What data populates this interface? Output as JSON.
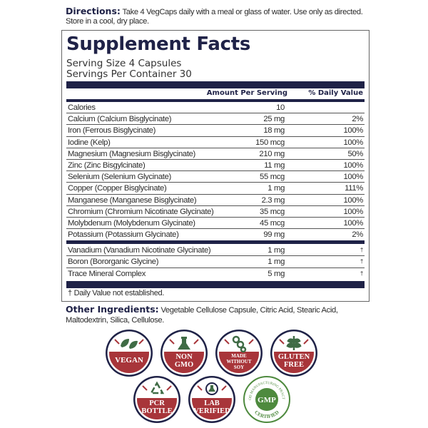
{
  "directions": {
    "label": "Directions:",
    "text": "Take 4 VegCaps daily with a meal or glass of water. Use only as directed. Store in a cool, dry place."
  },
  "facts": {
    "title": "Supplement Facts",
    "serving_size": "Serving Size 4 Capsules",
    "servings_per_container": "Servings Per Container 30",
    "col_amount": "Amount Per Serving",
    "col_dv": "% Daily Value",
    "rows": [
      {
        "name": "Calories",
        "amount": "10",
        "dv": ""
      },
      {
        "name": "Calcium (Calcium Bisglycinate)",
        "amount": "25 mg",
        "dv": "2%"
      },
      {
        "name": "Iron (Ferrous Bisglycinate)",
        "amount": "18 mg",
        "dv": "100%"
      },
      {
        "name": "Iodine (Kelp)",
        "amount": "150 mcg",
        "dv": "100%"
      },
      {
        "name": "Magnesium (Magnesium Bisglycinate)",
        "amount": "210 mg",
        "dv": "50%"
      },
      {
        "name": "Zinc (Zinc Bisgylcinate)",
        "amount": "11 mg",
        "dv": "100%"
      },
      {
        "name": "Selenium (Selenium Glycinate)",
        "amount": "55 mcg",
        "dv": "100%"
      },
      {
        "name": "Copper (Copper Bisglycinate)",
        "amount": "1 mg",
        "dv": "111%"
      },
      {
        "name": "Manganese (Manganese Bisglycinate)",
        "amount": "2.3 mg",
        "dv": "100%"
      },
      {
        "name": "Chromium (Chromium Nicotinate Glycinate)",
        "amount": "35 mcg",
        "dv": "100%"
      },
      {
        "name": "Molybdenum (Molybdenum Glycinate)",
        "amount": "45 mcg",
        "dv": "100%"
      },
      {
        "name": "Potassium (Potassium Glycinate)",
        "amount": "99 mg",
        "dv": "2%"
      }
    ],
    "rows2": [
      {
        "name": "Vanadium (Vanadium Nicotinate Glycinate)",
        "amount": "1 mg",
        "dv": "†"
      },
      {
        "name": "Boron (Bororganic Glycine)",
        "amount": "1 mg",
        "dv": "†"
      },
      {
        "name": "Trace Mineral Complex",
        "amount": "5 mg",
        "dv": "†"
      }
    ],
    "footnote": "† Daily Value not established."
  },
  "other": {
    "label": "Other Ingredients:",
    "text": "Vegetable Cellulose Capsule, Citric Acid, Stearic Acid, Maltodextrin, Silica, Cellulose."
  },
  "badges": [
    {
      "l1": "VEGAN",
      "l2": "",
      "l3": "",
      "icon": "leaf-icon"
    },
    {
      "l1": "NON",
      "l2": "GMO",
      "l3": "",
      "icon": "flask-icon"
    },
    {
      "l1": "MADE",
      "l2": "WITHOUT",
      "l3": "SOY",
      "icon": "soybean-icon"
    },
    {
      "l1": "GLUTEN",
      "l2": "FREE",
      "l3": "",
      "icon": "wheat-icon"
    },
    {
      "l1": "PCR",
      "l2": "BOTTLE",
      "l3": "",
      "icon": "recycle-icon"
    },
    {
      "l1": "LAB",
      "l2": "VERIFIED",
      "l3": "",
      "icon": "magnifier-flask-icon"
    }
  ],
  "gmp": {
    "center": "GMP",
    "top": "GOOD MANUFACTURING PRACTICE",
    "bottom": "CERTIFIED"
  },
  "colors": {
    "navy": "#1f2247",
    "badge_red": "#a8353a",
    "icon_green": "#3f6b45",
    "gmp_green": "#4e8a3e"
  }
}
